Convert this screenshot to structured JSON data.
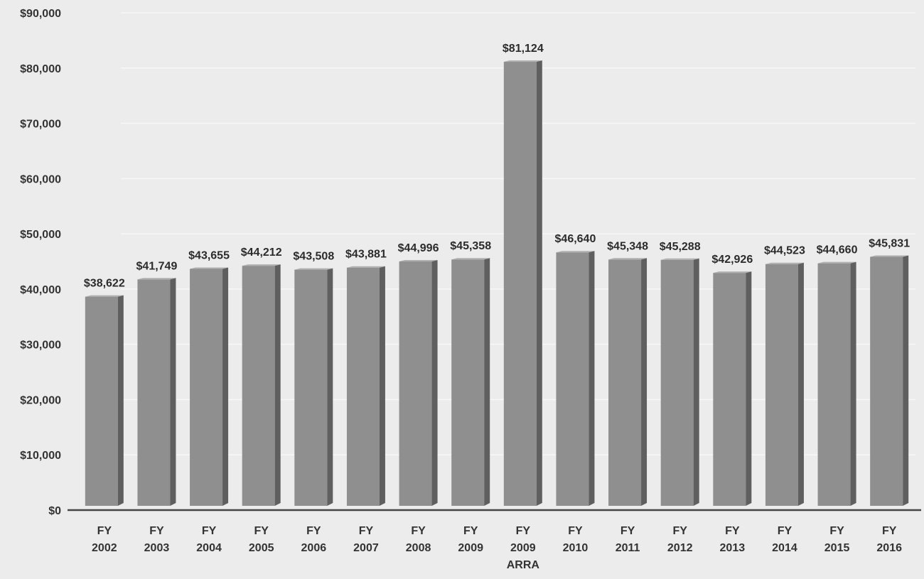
{
  "chart_data": {
    "type": "bar",
    "categories": [
      [
        "FY",
        "2002"
      ],
      [
        "FY",
        "2003"
      ],
      [
        "FY",
        "2004"
      ],
      [
        "FY",
        "2005"
      ],
      [
        "FY",
        "2006"
      ],
      [
        "FY",
        "2007"
      ],
      [
        "FY",
        "2008"
      ],
      [
        "FY",
        "2009"
      ],
      [
        "FY",
        "2009",
        "ARRA"
      ],
      [
        "FY",
        "2010"
      ],
      [
        "FY",
        "2011"
      ],
      [
        "FY",
        "2012"
      ],
      [
        "FY",
        "2013"
      ],
      [
        "FY",
        "2014"
      ],
      [
        "FY",
        "2015"
      ],
      [
        "FY",
        "2016"
      ]
    ],
    "values": [
      38622,
      41749,
      43655,
      44212,
      43508,
      43881,
      44996,
      45358,
      81124,
      46640,
      45348,
      45288,
      42926,
      44523,
      44660,
      45831
    ],
    "data_labels": [
      "$38,622",
      "$41,749",
      "$43,655",
      "$44,212",
      "$43,508",
      "$43,881",
      "$44,996",
      "$45,358",
      "$81,124",
      "$46,640",
      "$45,348",
      "$45,288",
      "$42,926",
      "$44,523",
      "$44,660",
      "$45,831"
    ],
    "y_ticks": [
      0,
      10000,
      20000,
      30000,
      40000,
      50000,
      60000,
      70000,
      80000,
      90000
    ],
    "y_tick_labels": [
      "$0",
      "$10,000",
      "$20,000",
      "$30,000",
      "$40,000",
      "$50,000",
      "$60,000",
      "$70,000",
      "$80,000",
      "$90,000"
    ],
    "ylim": [
      0,
      90000
    ],
    "title": "",
    "xlabel": "",
    "ylabel": "",
    "grid": true,
    "legend": "none",
    "colors": {
      "bar_front": "#8f8f8f",
      "bar_side": "#5f5f5f",
      "bar_top": "#b0b0b0",
      "axis": "#444444",
      "background": "#ececec"
    }
  }
}
